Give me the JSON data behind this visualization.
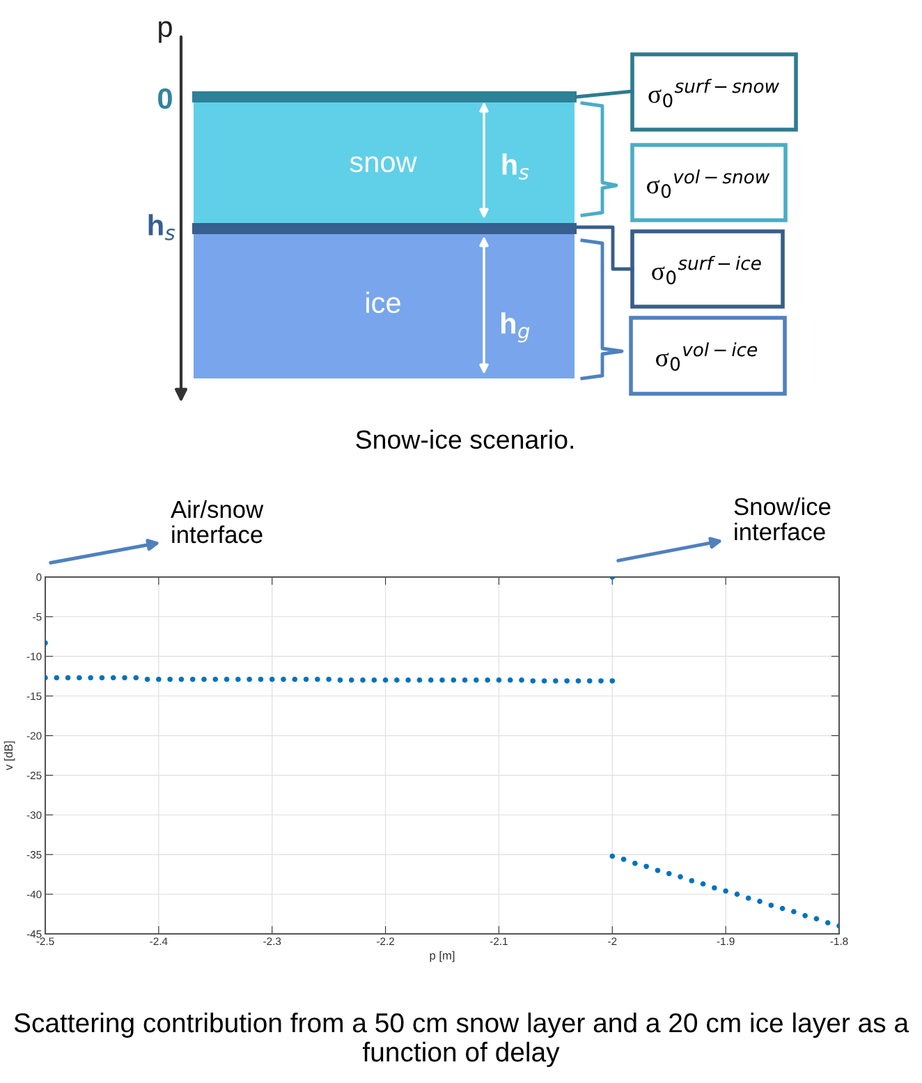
{
  "chart_data": [
    {
      "type": "other",
      "title": "Snow-ice scenario.",
      "annotations": [
        "p",
        "0",
        "h$_{s}$",
        "snow",
        "h$_{s}$",
        "ice",
        "h$_{g}$",
        "σ$_{0}$$^{surf−snow}$",
        "σ$_{0}$$^{vol−snow}$",
        "σ$_{0}$$^{surf−ice}$",
        "σ$_{0}$$^{vol−ice}$"
      ]
    },
    {
      "type": "scatter",
      "xlabel": "p [m]",
      "ylabel": "v [dB]",
      "xlim": [
        -2.5,
        -1.8
      ],
      "xticks": [
        -2.5,
        -2.4,
        -2.3,
        -2.2,
        -2.1,
        -2,
        -1.9,
        -1.8
      ],
      "ylim": [
        -45,
        0
      ],
      "yticks": [
        -45,
        -40,
        -35,
        -30,
        -25,
        -20,
        -15,
        -10,
        -5,
        0
      ],
      "grid": true,
      "marker": "circle",
      "series": [
        {
          "color": "#0072bd",
          "x": [
            -2.5,
            -2.5,
            -2.49,
            -2.48,
            -2.47,
            -2.46,
            -2.45,
            -2.44,
            -2.43,
            -2.42,
            -2.41,
            -2.4,
            -2.39,
            -2.38,
            -2.37,
            -2.36,
            -2.35,
            -2.34,
            -2.33,
            -2.32,
            -2.31,
            -2.3,
            -2.29,
            -2.28,
            -2.27,
            -2.26,
            -2.25,
            -2.24,
            -2.23,
            -2.22,
            -2.21,
            -2.2,
            -2.19,
            -2.18,
            -2.17,
            -2.16,
            -2.15,
            -2.14,
            -2.13,
            -2.12,
            -2.11,
            -2.1,
            -2.09,
            -2.08,
            -2.07,
            -2.06,
            -2.05,
            -2.04,
            -2.03,
            -2.02,
            -2.01,
            -2,
            -2,
            -2,
            -1.99,
            -1.98,
            -1.97,
            -1.96,
            -1.95,
            -1.94,
            -1.93,
            -1.92,
            -1.91,
            -1.9,
            -1.89,
            -1.88,
            -1.87,
            -1.86,
            -1.85,
            -1.84,
            -1.83,
            -1.82,
            -1.81,
            -1.8
          ],
          "values": [
            -8.3,
            -12.7,
            -12.7,
            -12.7,
            -12.7,
            -12.7,
            -12.7,
            -12.7,
            -12.7,
            -12.7,
            -12.9,
            -12.9,
            -12.9,
            -12.9,
            -12.9,
            -12.9,
            -12.9,
            -12.9,
            -12.9,
            -12.9,
            -12.9,
            -12.9,
            -12.9,
            -12.9,
            -12.9,
            -12.9,
            -12.9,
            -13.0,
            -13.0,
            -13.0,
            -13.0,
            -13.0,
            -13.0,
            -13.0,
            -13.0,
            -13.0,
            -13.0,
            -13.0,
            -13.0,
            -13.0,
            -13.0,
            -13.0,
            -13.0,
            -13.0,
            -13.1,
            -13.1,
            -13.1,
            -13.1,
            -13.1,
            -13.1,
            -13.1,
            -13.1,
            0,
            -35.2,
            -35.6,
            -36.1,
            -36.5,
            -37.0,
            -37.4,
            -37.8,
            -38.3,
            -38.7,
            -39.2,
            -39.6,
            -40.0,
            -40.5,
            -40.9,
            -41.4,
            -41.8,
            -42.2,
            -42.7,
            -43.1,
            -43.6,
            -44.0
          ]
        }
      ],
      "annotations": [
        "Air/snow\ninterface",
        "Snow/ice\ninterface",
        "Scattering contribution from a 50 cm snow layer and a 20 cm ice layer as a function of delay"
      ]
    }
  ]
}
